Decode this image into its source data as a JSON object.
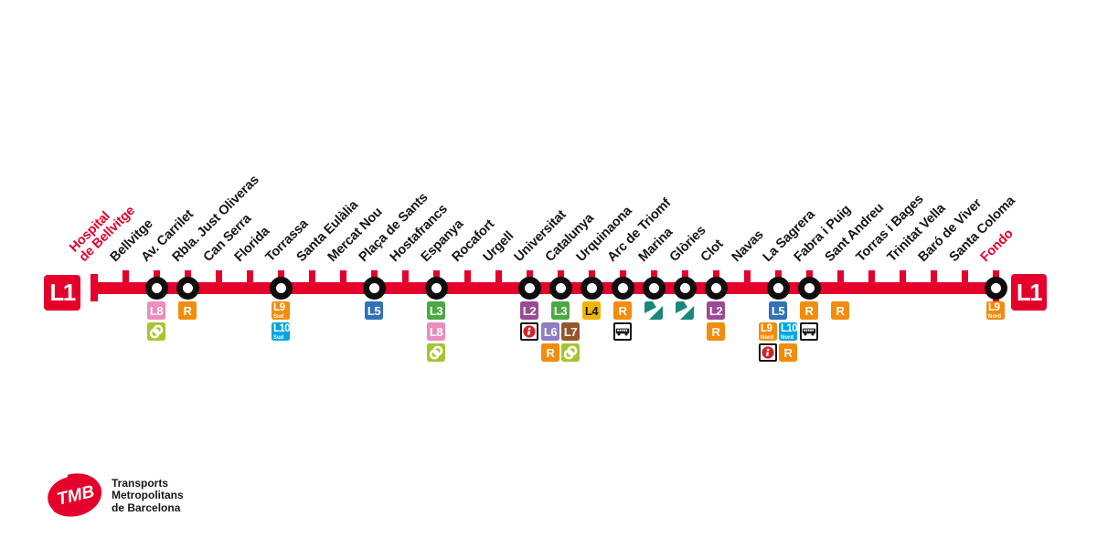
{
  "colors": {
    "brand_red": "#E4002B",
    "marker_black": "#0E0E0E",
    "label_black": "#161616"
  },
  "line": {
    "name": "L1",
    "badge_left": "L1",
    "badge_right": "L1"
  },
  "badge_defs": {
    "l2": {
      "label": "L2",
      "bg": "#9B4A97",
      "fg": "#FFFFFF"
    },
    "l3": {
      "label": "L3",
      "bg": "#4AA943",
      "fg": "#FFFFFF"
    },
    "l4": {
      "label": "L4",
      "bg": "#F1B500",
      "fg": "#141414"
    },
    "l5": {
      "label": "L5",
      "bg": "#3071B9",
      "fg": "#FFFFFF"
    },
    "l6": {
      "label": "L6",
      "bg": "#8C7EC4",
      "fg": "#FFFFFF"
    },
    "l7": {
      "label": "L7",
      "bg": "#96562B",
      "fg": "#FFFFFF"
    },
    "l8": {
      "label": "L8",
      "bg": "#EB8DBD",
      "fg": "#FFFFFF"
    },
    "l9sud": {
      "label": "L9",
      "sub": "Sud",
      "bg": "#F28C0C",
      "fg": "#FFFFFF"
    },
    "l9nord": {
      "label": "L9",
      "sub": "Nord",
      "bg": "#F28C0C",
      "fg": "#FFFFFF"
    },
    "l10sud": {
      "label": "L10",
      "sub": "Sud",
      "bg": "#00A5E0",
      "fg": "#FFFFFF"
    },
    "l10nord": {
      "label": "L10",
      "sub": "Nord",
      "bg": "#00A5E0",
      "fg": "#FFFFFF"
    },
    "rodalies": {
      "label": "R",
      "bg": "#F28C0C",
      "fg": "#FFFFFF"
    },
    "fgc": {
      "icon": "fgc",
      "bg": "#A6C52F",
      "accent": "#FFFFFF"
    },
    "tram": {
      "icon": "tram",
      "bg": "#17897C",
      "accent": "#FFFFFF"
    },
    "info": {
      "icon": "info",
      "border": true,
      "accent": "#D2232A"
    },
    "bus": {
      "icon": "bus",
      "border": true,
      "accent": "#151515"
    }
  },
  "stations": [
    {
      "name": "Hospital de Bellvitge",
      "label_lines": [
        "Hospital",
        "de Bellvitge"
      ],
      "marker": "terminus-cap",
      "terminus": true
    },
    {
      "name": "Bellvitge",
      "marker": "tick"
    },
    {
      "name": "Av. Carrilet",
      "marker": "interchange",
      "badges": [
        [
          "l8"
        ],
        [
          "fgc"
        ]
      ]
    },
    {
      "name": "Rbla. Just Oliveras",
      "marker": "interchange",
      "badges": [
        [
          "rodalies"
        ]
      ]
    },
    {
      "name": "Can Serra",
      "marker": "tick"
    },
    {
      "name": "Florida",
      "marker": "tick"
    },
    {
      "name": "Torrassa",
      "marker": "interchange",
      "badges": [
        [
          "l9sud"
        ],
        [
          "l10sud"
        ]
      ]
    },
    {
      "name": "Santa Eulàlia",
      "marker": "tick"
    },
    {
      "name": "Mercat Nou",
      "marker": "tick"
    },
    {
      "name": "Plaça de Sants",
      "marker": "interchange",
      "badges": [
        [
          "l5"
        ]
      ]
    },
    {
      "name": "Hostafrancs",
      "marker": "tick"
    },
    {
      "name": "Espanya",
      "marker": "interchange",
      "badges": [
        [
          "l3"
        ],
        [
          "l8"
        ],
        [
          "fgc"
        ]
      ]
    },
    {
      "name": "Rocafort",
      "marker": "tick"
    },
    {
      "name": "Urgell",
      "marker": "tick"
    },
    {
      "name": "Universitat",
      "marker": "interchange",
      "badges": [
        [
          "l2"
        ],
        [
          "info"
        ]
      ]
    },
    {
      "name": "Catalunya",
      "marker": "interchange",
      "badges": [
        [
          "l3"
        ],
        [
          "l6",
          "l7"
        ],
        [
          "rodalies",
          "fgc"
        ]
      ]
    },
    {
      "name": "Urquinaona",
      "marker": "interchange",
      "badges": [
        [
          "l4"
        ]
      ]
    },
    {
      "name": "Arc de Triomf",
      "marker": "interchange",
      "badges": [
        [
          "rodalies"
        ],
        [
          "bus"
        ]
      ]
    },
    {
      "name": "Marina",
      "marker": "interchange",
      "badges": [
        [
          "tram"
        ]
      ]
    },
    {
      "name": "Glòries",
      "marker": "interchange",
      "badges": [
        [
          "tram"
        ]
      ]
    },
    {
      "name": "Clot",
      "marker": "interchange",
      "badges": [
        [
          "l2"
        ],
        [
          "rodalies"
        ]
      ]
    },
    {
      "name": "Navas",
      "marker": "tick"
    },
    {
      "name": "La Sagrera",
      "marker": "interchange",
      "badges": [
        [
          "l5"
        ],
        [
          "l9nord",
          "l10nord"
        ],
        [
          "info",
          "rodalies"
        ]
      ]
    },
    {
      "name": "Fabra i Puig",
      "marker": "interchange",
      "badges": [
        [
          "rodalies"
        ],
        [
          "bus"
        ]
      ]
    },
    {
      "name": "Sant Andreu",
      "marker": "tick",
      "badges": [
        [
          "rodalies"
        ]
      ]
    },
    {
      "name": "Torras i Bages",
      "marker": "tick"
    },
    {
      "name": "Trinitat Vella",
      "marker": "tick"
    },
    {
      "name": "Baró de Viver",
      "marker": "tick"
    },
    {
      "name": "Santa Coloma",
      "marker": "tick"
    },
    {
      "name": "Fondo",
      "marker": "interchange",
      "terminus": true,
      "stub": true,
      "badges": [
        [
          "l9nord"
        ]
      ]
    }
  ],
  "logo": {
    "brand": "TMB",
    "line1": "Transports",
    "line2": "Metropolitans",
    "line3": "de Barcelona"
  }
}
